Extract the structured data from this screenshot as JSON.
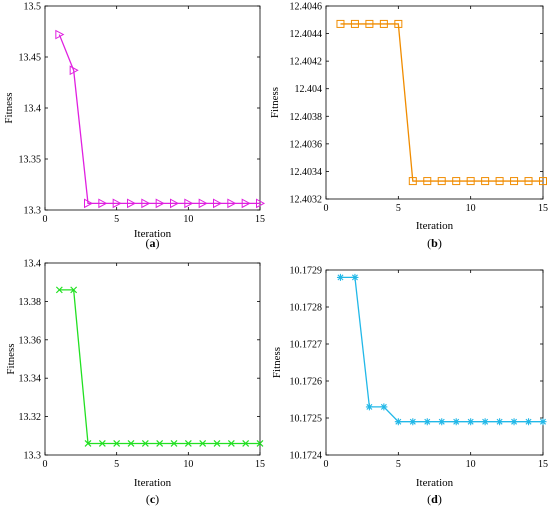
{
  "chart_data": [
    {
      "type": "line",
      "panel_label": "a",
      "xlabel": "Iteration",
      "ylabel": "Fitness",
      "xlim": [
        0,
        15
      ],
      "ylim": [
        13.3,
        13.5
      ],
      "xticks": [
        0,
        5,
        10,
        15
      ],
      "yticks": [
        13.3,
        13.35,
        13.4,
        13.45,
        13.5
      ],
      "ytick_labels": [
        "13.3",
        "13.35",
        "13.4",
        "13.45",
        "13.5"
      ],
      "grid": false,
      "series": [
        {
          "color": "#e020e0",
          "marker": "triangle-right",
          "x": [
            1,
            2,
            3,
            4,
            5,
            6,
            7,
            8,
            9,
            10,
            11,
            12,
            13,
            14,
            15
          ],
          "y": [
            13.472,
            13.437,
            13.3065,
            13.3065,
            13.3065,
            13.3065,
            13.3065,
            13.3065,
            13.3065,
            13.3065,
            13.3065,
            13.3065,
            13.3065,
            13.3065,
            13.3065
          ]
        }
      ]
    },
    {
      "type": "line",
      "panel_label": "b",
      "xlabel": "Iteration",
      "ylabel": "Fitness",
      "xlim": [
        0,
        15
      ],
      "ylim": [
        12.4032,
        12.4046
      ],
      "xticks": [
        0,
        5,
        10,
        15
      ],
      "yticks": [
        12.4032,
        12.4034,
        12.4036,
        12.4038,
        12.404,
        12.4042,
        12.4044,
        12.4046
      ],
      "ytick_labels": [
        "12.4032",
        "12.4034",
        "12.4036",
        "12.4038",
        "12.404",
        "12.4042",
        "12.4044",
        "12.4046"
      ],
      "grid": false,
      "series": [
        {
          "color": "#f08c00",
          "marker": "square",
          "x": [
            1,
            2,
            3,
            4,
            5,
            6,
            7,
            8,
            9,
            10,
            11,
            12,
            13,
            14,
            15
          ],
          "y": [
            12.40447,
            12.40447,
            12.40447,
            12.40447,
            12.40447,
            12.40333,
            12.40333,
            12.40333,
            12.40333,
            12.40333,
            12.40333,
            12.40333,
            12.40333,
            12.40333,
            12.40333
          ]
        }
      ]
    },
    {
      "type": "line",
      "panel_label": "c",
      "xlabel": "Iteration",
      "ylabel": "Fitness",
      "xlim": [
        0,
        15
      ],
      "ylim": [
        13.3,
        13.4
      ],
      "xticks": [
        0,
        5,
        10,
        15
      ],
      "yticks": [
        13.3,
        13.32,
        13.34,
        13.36,
        13.38,
        13.4
      ],
      "ytick_labels": [
        "13.3",
        "13.32",
        "13.34",
        "13.36",
        "13.38",
        "13.4"
      ],
      "grid": false,
      "series": [
        {
          "color": "#22e022",
          "marker": "x",
          "x": [
            1,
            2,
            3,
            4,
            5,
            6,
            7,
            8,
            9,
            10,
            11,
            12,
            13,
            14,
            15
          ],
          "y": [
            13.386,
            13.386,
            13.306,
            13.306,
            13.306,
            13.306,
            13.306,
            13.306,
            13.306,
            13.306,
            13.306,
            13.306,
            13.306,
            13.306,
            13.306
          ]
        }
      ]
    },
    {
      "type": "line",
      "panel_label": "d",
      "xlabel": "Iteration",
      "ylabel": "Fitness",
      "xlim": [
        0,
        15
      ],
      "ylim": [
        10.1724,
        10.1729
      ],
      "xticks": [
        0,
        5,
        10,
        15
      ],
      "yticks": [
        10.1724,
        10.1725,
        10.1726,
        10.1727,
        10.1728,
        10.1729
      ],
      "ytick_labels": [
        "10.1724",
        "10.1725",
        "10.1726",
        "10.1727",
        "10.1728",
        "10.1729"
      ],
      "grid": false,
      "series": [
        {
          "color": "#22b8e8",
          "marker": "asterisk",
          "x": [
            1,
            2,
            3,
            4,
            5,
            6,
            7,
            8,
            9,
            10,
            11,
            12,
            13,
            14,
            15
          ],
          "y": [
            10.17288,
            10.17288,
            10.17253,
            10.17253,
            10.17249,
            10.17249,
            10.17249,
            10.17249,
            10.17249,
            10.17249,
            10.17249,
            10.17249,
            10.17249,
            10.17249,
            10.17249
          ]
        }
      ]
    }
  ]
}
